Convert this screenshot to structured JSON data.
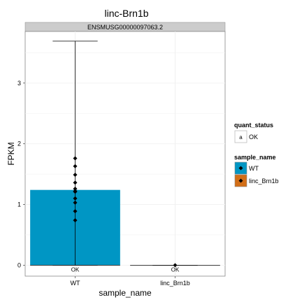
{
  "chart_data": {
    "type": "bar",
    "title": "linc-Brn1b",
    "facet_label": "ENSMUSG00000097063.2",
    "xlabel": "sample_name",
    "ylabel": "FPKM",
    "ylim": [
      -0.18,
      3.85
    ],
    "y_ticks": [
      "0",
      "1",
      "2",
      "3"
    ],
    "y_tick_values": [
      0,
      1,
      2,
      3
    ],
    "grid": true,
    "categories": [
      "WT",
      "linc_Brn1b"
    ],
    "bars": [
      {
        "category": "WT",
        "value": 1.24,
        "error_low": 0,
        "error_high": 3.69,
        "status_label": "OK",
        "fill": "#0096c4"
      },
      {
        "category": "linc_Brn1b",
        "value": 0,
        "error_low": 0,
        "error_high": 0,
        "status_label": "OK",
        "fill": "#d26e17"
      }
    ],
    "points": [
      {
        "category": "WT",
        "values": [
          1.76,
          1.63,
          1.49,
          1.36,
          1.26,
          1.22,
          1.21,
          1.1,
          1.03,
          0.89,
          0.74
        ]
      },
      {
        "category": "linc_Brn1b",
        "values": [
          0
        ]
      }
    ],
    "legend": {
      "placement": "right",
      "quant_status": {
        "title": "quant_status",
        "key_glyph": "a",
        "items": [
          "OK"
        ]
      },
      "sample_name": {
        "title": "sample_name",
        "items": [
          {
            "label": "WT",
            "color": "#0096c4"
          },
          {
            "label": "linc_Brn1b",
            "color": "#d26e17"
          }
        ]
      }
    },
    "colors": {
      "panel_border": "#888888",
      "strip_bg": "#cccccc",
      "grid": "#f0f0f0"
    }
  }
}
